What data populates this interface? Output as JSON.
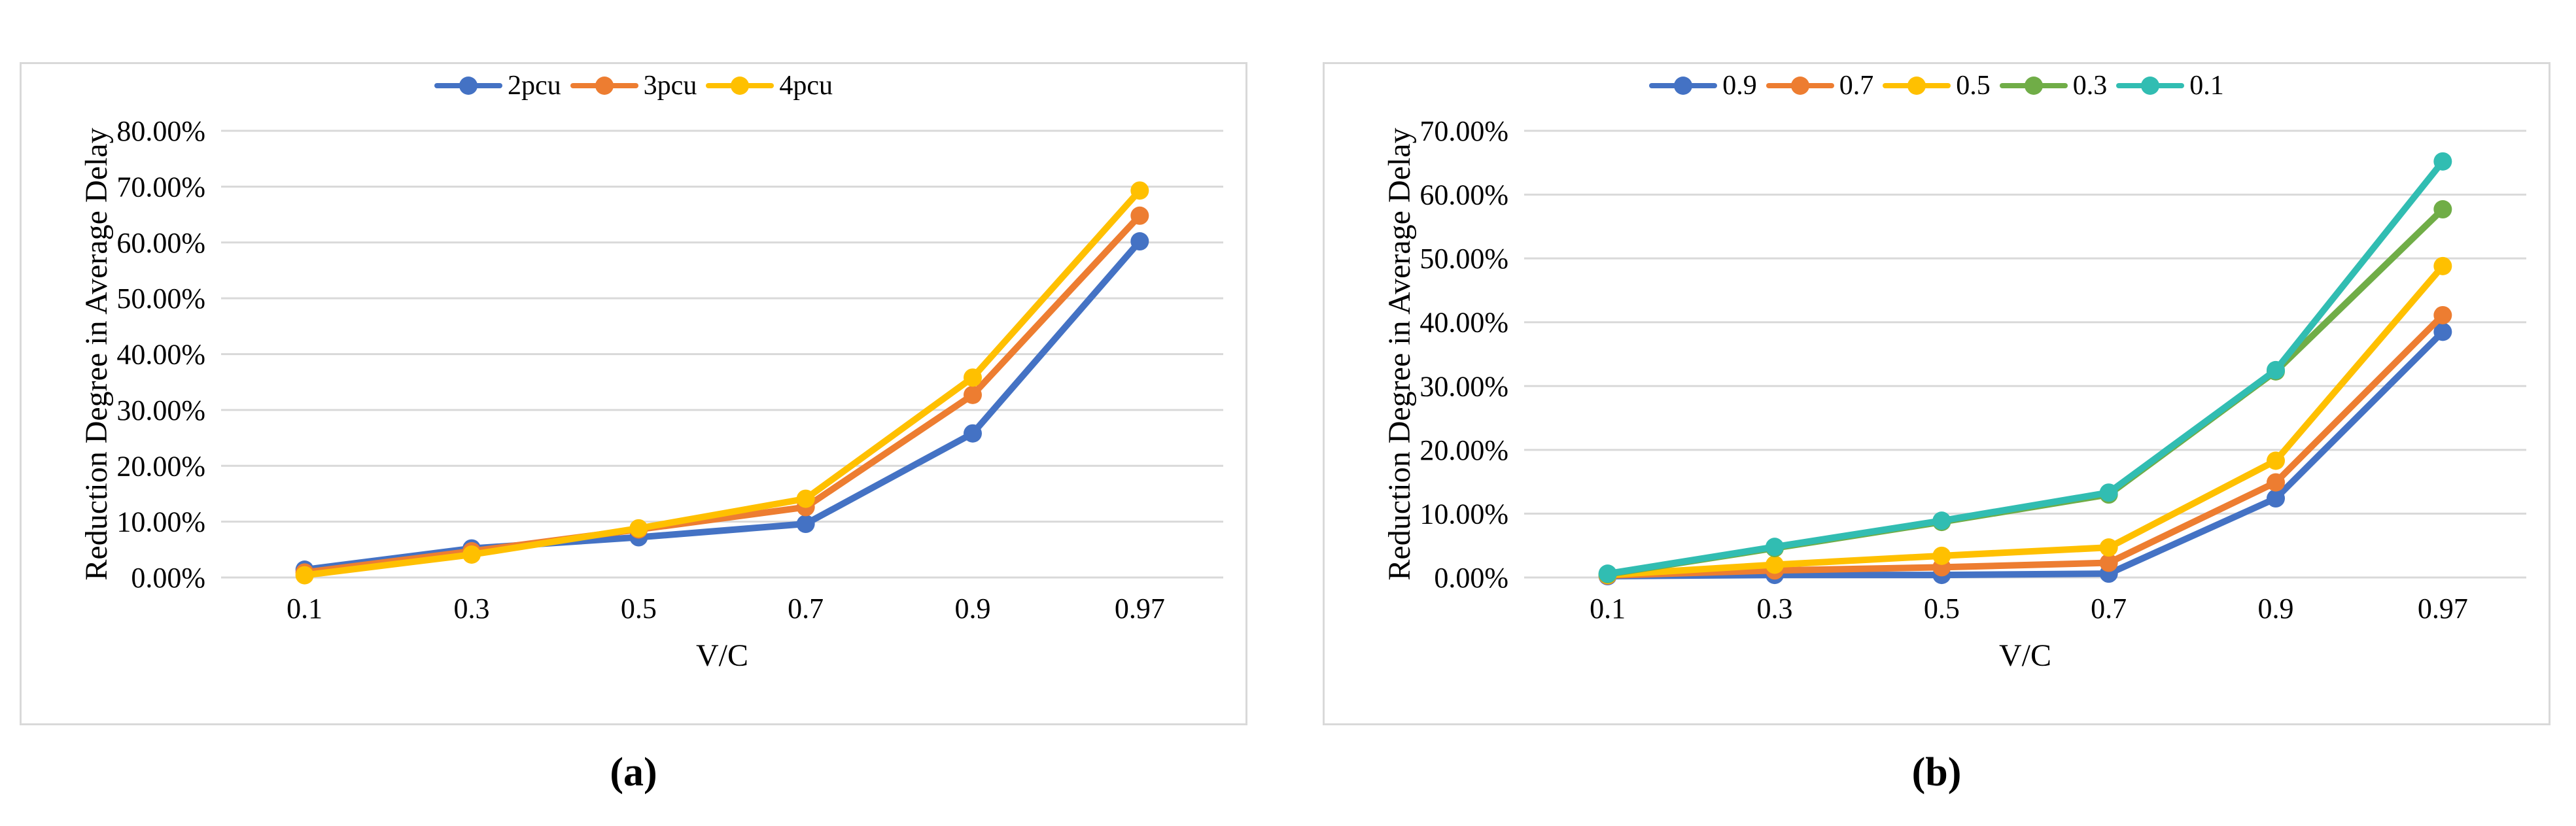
{
  "page": {
    "background": "#ffffff"
  },
  "colors": {
    "blue": "#4472C4",
    "orange": "#ED7D31",
    "yellow": "#FFC000",
    "green": "#70AD47",
    "teal": "#31BDB2",
    "gridline": "#d9d9d9",
    "panel_border": "#d9d9d9"
  },
  "chart_data": [
    {
      "id": "a",
      "type": "line",
      "caption": "(a)",
      "title": "",
      "xlabel": "V/C",
      "ylabel": "Reduction Degree in Average Delay",
      "categories": [
        "0.1",
        "0.3",
        "0.5",
        "0.7",
        "0.9",
        "0.97"
      ],
      "ylim": [
        0,
        80
      ],
      "ytick_step": 10,
      "ytick_format": "percent-2-decimals",
      "grid": true,
      "legend_position": "top",
      "series": [
        {
          "name": "2pcu",
          "color": "#4472C4",
          "values": [
            1.4,
            5.2,
            7.2,
            9.6,
            25.8,
            60.2
          ]
        },
        {
          "name": "3pcu",
          "color": "#ED7D31",
          "values": [
            0.9,
            4.7,
            8.6,
            12.6,
            32.7,
            64.8
          ]
        },
        {
          "name": "4pcu",
          "color": "#FFC000",
          "values": [
            0.4,
            4.1,
            8.8,
            14.1,
            35.8,
            69.3
          ]
        }
      ]
    },
    {
      "id": "b",
      "type": "line",
      "caption": "(b)",
      "title": "",
      "xlabel": "V/C",
      "ylabel": "Reduction Degree in Average Delay",
      "categories": [
        "0.1",
        "0.3",
        "0.5",
        "0.7",
        "0.9",
        "0.97"
      ],
      "ylim": [
        0,
        70
      ],
      "ytick_step": 10,
      "ytick_format": "percent-2-decimals",
      "grid": true,
      "legend_position": "top",
      "series": [
        {
          "name": "0.9",
          "color": "#4472C4",
          "values": [
            0.2,
            0.4,
            0.4,
            0.6,
            12.4,
            38.5
          ]
        },
        {
          "name": "0.7",
          "color": "#ED7D31",
          "values": [
            0.3,
            1.1,
            1.6,
            2.3,
            14.9,
            41.1
          ]
        },
        {
          "name": "0.5",
          "color": "#FFC000",
          "values": [
            0.4,
            2.0,
            3.4,
            4.7,
            18.3,
            48.8
          ]
        },
        {
          "name": "0.3",
          "color": "#70AD47",
          "values": [
            0.5,
            4.6,
            8.7,
            13.0,
            32.3,
            57.7
          ]
        },
        {
          "name": "0.1",
          "color": "#31BDB2",
          "values": [
            0.6,
            4.8,
            8.9,
            13.3,
            32.5,
            65.2
          ]
        }
      ]
    }
  ]
}
